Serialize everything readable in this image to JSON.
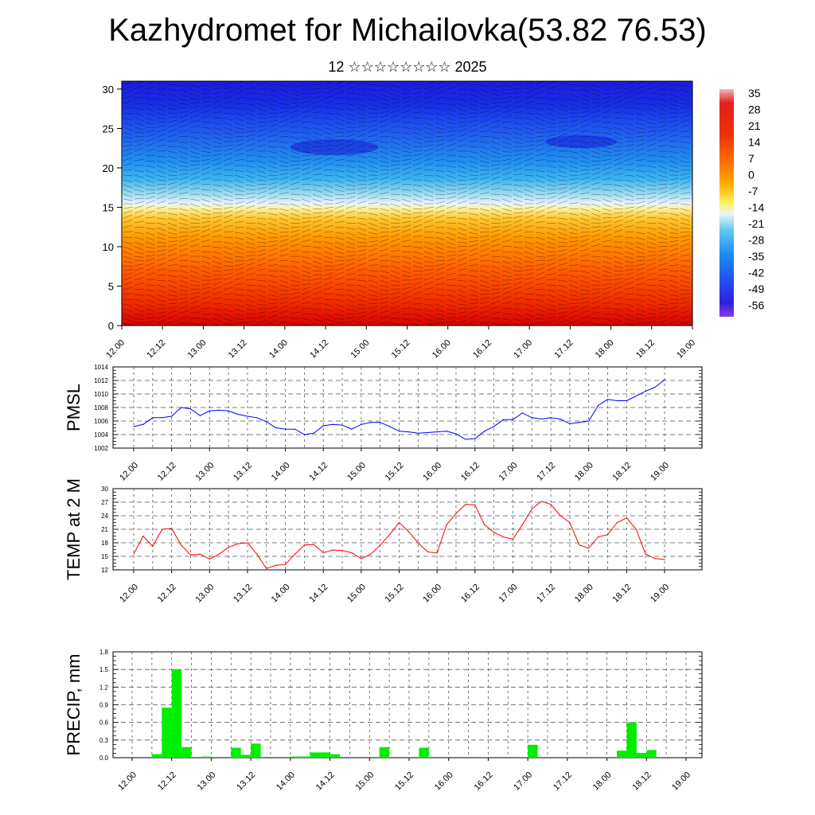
{
  "title": "Kazhydromet for Michailovka(53.82 76.53)",
  "subtitle": "12 ☆☆☆☆☆☆☆☆ 2025",
  "colorbar_labels": [
    "35",
    "28",
    "21",
    "14",
    "7",
    "0",
    "-7",
    "-14",
    "-21",
    "-28",
    "-35",
    "-42",
    "-49",
    "-56"
  ],
  "chart_data": [
    {
      "type": "heatmap",
      "x_ticks": [
        "12.00",
        "12.12",
        "13.00",
        "13.12",
        "14.00",
        "14.12",
        "15.00",
        "15.12",
        "16.00",
        "16.12",
        "17.00",
        "17.12",
        "18.00",
        "18.12",
        "19.00"
      ],
      "y_ticks": [
        "0",
        "5",
        "10",
        "15",
        "20",
        "25",
        "30"
      ],
      "ylim": [
        0,
        31
      ],
      "color_scale": {
        "min": -56,
        "max": 35
      },
      "description_levels": "temperature shading with wind barbs"
    },
    {
      "type": "line",
      "ylabel": "PMSL",
      "x_ticks": [
        "12.00",
        "12.12",
        "13.00",
        "13.12",
        "14.00",
        "14.12",
        "15.00",
        "15.12",
        "16.00",
        "16.12",
        "17.00",
        "17.12",
        "18.00",
        "18.12",
        "19.00"
      ],
      "y_ticks": [
        "1002",
        "1004",
        "1006",
        "1008",
        "1010",
        "1012",
        "1014"
      ],
      "ylim": [
        1002,
        1014
      ],
      "color": "#0000ff",
      "values": [
        1005.2,
        1005.5,
        1006.5,
        1006.5,
        1006.7,
        1008.0,
        1007.8,
        1006.8,
        1007.5,
        1007.6,
        1007.5,
        1007.0,
        1006.7,
        1006.5,
        1005.9,
        1005.0,
        1004.8,
        1004.8,
        1004.0,
        1004.2,
        1005.3,
        1005.5,
        1005.4,
        1004.8,
        1005.5,
        1005.8,
        1005.8,
        1005.2,
        1004.5,
        1004.4,
        1004.2,
        1004.3,
        1004.4,
        1004.5,
        1004.1,
        1003.3,
        1003.4,
        1004.5,
        1005.2,
        1006.2,
        1006.2,
        1007.2,
        1006.5,
        1006.3,
        1006.5,
        1006.3,
        1005.6,
        1005.8,
        1006.0,
        1008.3,
        1009.2,
        1009.0,
        1009.0,
        1009.7,
        1010.4,
        1011.0,
        1012.1
      ]
    },
    {
      "type": "line",
      "ylabel": "TEMP at 2 M",
      "x_ticks": [
        "12.00",
        "12.12",
        "13.00",
        "13.12",
        "14.00",
        "14.12",
        "15.00",
        "15.12",
        "16.00",
        "16.12",
        "17.00",
        "17.12",
        "18.00",
        "18.12",
        "19.00"
      ],
      "y_ticks": [
        "12",
        "15",
        "18",
        "21",
        "24",
        "27",
        "30"
      ],
      "ylim": [
        12,
        30
      ],
      "color": "#ff0000",
      "values": [
        15.5,
        19.5,
        17.2,
        21.0,
        21.2,
        17.5,
        15.3,
        15.5,
        14.4,
        15.5,
        17.0,
        17.8,
        18.0,
        15.5,
        12.3,
        13.0,
        13.2,
        15.5,
        17.5,
        17.6,
        15.8,
        16.4,
        16.3,
        15.8,
        14.5,
        15.5,
        17.5,
        19.8,
        22.5,
        20.5,
        18.0,
        16.0,
        15.7,
        22.0,
        24.5,
        26.5,
        26.4,
        22.0,
        20.3,
        19.3,
        18.8,
        22.0,
        25.5,
        27.2,
        26.5,
        24.0,
        22.5,
        17.5,
        16.8,
        19.3,
        19.8,
        22.5,
        23.5,
        21.0,
        15.5,
        14.5,
        14.3
      ]
    },
    {
      "type": "bar",
      "ylabel": "PRECIP, mm",
      "x_ticks": [
        "12.00",
        "12.12",
        "13.00",
        "13.12",
        "14.00",
        "14.12",
        "15.00",
        "15.12",
        "16.00",
        "16.12",
        "17.00",
        "17.12",
        "18.00",
        "18.12",
        "19.00"
      ],
      "y_ticks": [
        "0.0",
        "0.3",
        "0.6",
        "0.9",
        "1.2",
        "1.5",
        "1.8"
      ],
      "ylim": [
        0,
        1.8
      ],
      "color": "#00ee00",
      "values": [
        0,
        0,
        0.06,
        0.85,
        1.5,
        0.18,
        0,
        0.02,
        0,
        0,
        0.17,
        0.05,
        0.24,
        0,
        0,
        0,
        0.02,
        0.02,
        0.09,
        0.09,
        0.06,
        0,
        0,
        0,
        0,
        0.18,
        0,
        0,
        0,
        0.17,
        0,
        0,
        0,
        0,
        0,
        0,
        0,
        0,
        0,
        0,
        0.22,
        0,
        0,
        0,
        0,
        0,
        0,
        0,
        0,
        0.12,
        0.6,
        0.08,
        0.13,
        0,
        0,
        0,
        0
      ]
    }
  ]
}
